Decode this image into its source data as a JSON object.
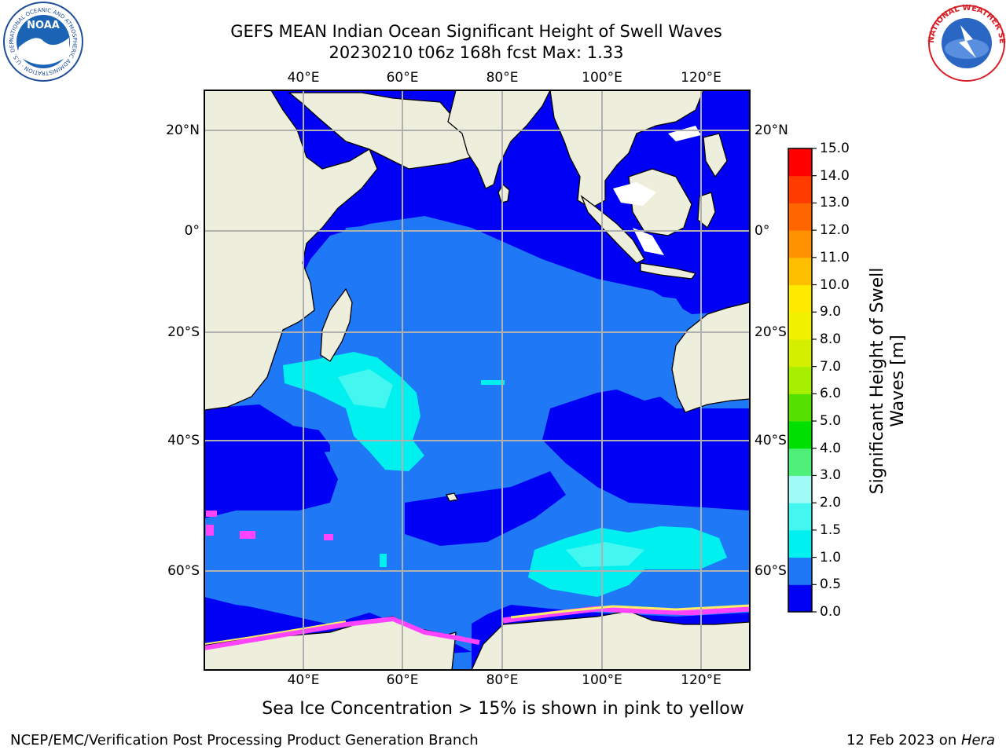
{
  "title_line1": "GEFS MEAN Indian Ocean Significant Height of Swell Waves",
  "title_line2": "20230210 t06z 168h fcst   Max: 1.33",
  "logos": {
    "left": {
      "name": "noaa-logo",
      "text": "NOAA",
      "ring_text": "NATIONAL OCEANIC AND ATMOSPHERIC ADMINISTRATION · U.S. DEPARTMENT OF COMMERCE"
    },
    "right": {
      "name": "nws-logo",
      "ring_text": "NATIONAL WEATHER SERVICE"
    }
  },
  "axes": {
    "lon_ticks": [
      "40°E",
      "60°E",
      "80°E",
      "100°E",
      "120°E"
    ],
    "lat_ticks_left": [
      "20°N",
      "0°",
      "20°S",
      "40°S",
      "60°S"
    ],
    "lat_ticks_right": [
      "20°N",
      "0°",
      "20°S",
      "40°S",
      "60°S"
    ]
  },
  "colorbar": {
    "label": "Significant Height of Swell Waves [m]",
    "ticks": [
      "0.0",
      "0.5",
      "1.0",
      "1.5",
      "2.0",
      "3.0",
      "4.0",
      "5.0",
      "6.0",
      "7.0",
      "8.0",
      "9.0",
      "10.0",
      "11.0",
      "12.0",
      "13.0",
      "14.0",
      "15.0"
    ],
    "colors": [
      "#0000f5",
      "#1f78f5",
      "#00f0f0",
      "#44f6f0",
      "#a0fbf6",
      "#4ef07a",
      "#00e000",
      "#55e000",
      "#a8ee00",
      "#d4ee00",
      "#f2f200",
      "#ffea00",
      "#ffbe00",
      "#ff9200",
      "#ff6600",
      "#ff3b00",
      "#ff0000"
    ]
  },
  "caption": "Sea Ice Concentration > 15% is shown in pink to yellow",
  "footer_left": "NCEP/EMC/Verification Post Processing Product Generation Branch",
  "footer_right_date": "12 Feb 2023 on ",
  "footer_right_machine": "Hera",
  "map_colors": {
    "land": "#eeeedd",
    "ocean_low": "#0000f5",
    "ocean_mid": "#1f78f5",
    "ocean_high": "#00f0f0",
    "ocean_higher": "#44f6f0",
    "sea_ice": "#ff44ff",
    "ice_yellow": "#ffee66",
    "grid": "#b0b0b0"
  }
}
